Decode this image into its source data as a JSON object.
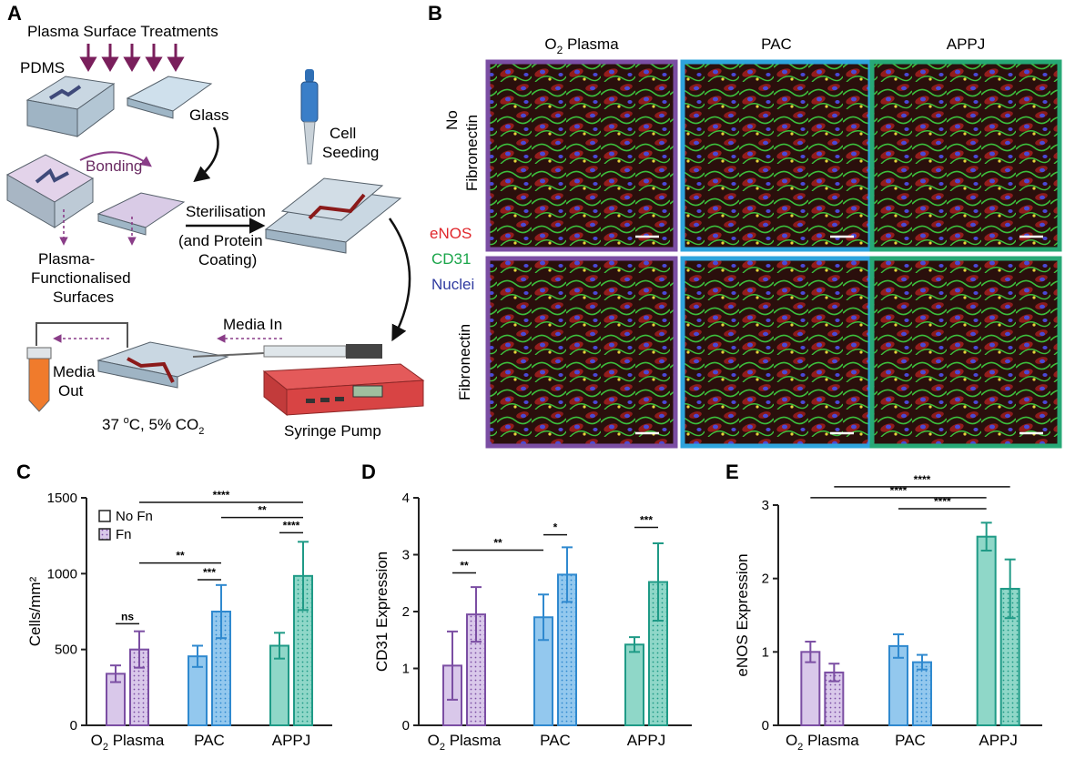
{
  "panels": {
    "A": {
      "letter": "A",
      "title": "Plasma Surface Treatments",
      "pdms": "PDMS",
      "glass": "Glass",
      "bonding": "Bonding",
      "functionalised_line1": "Plasma-",
      "functionalised_line2": "Functionalised",
      "functionalised_line3": "Surfaces",
      "sterilisation": "Sterilisation",
      "coating_line1": "(and Protein",
      "coating_line2": "Coating)",
      "seeding_line1": "Cell",
      "seeding_line2": "Seeding",
      "media_in": "Media In",
      "media_out_line1": "Media",
      "media_out_line2": "Out",
      "incubation_pre": "37 ",
      "incubation_deg": "o",
      "incubation_mid": "C, 5% CO",
      "incubation_sub": "2",
      "pump": "Syringe Pump"
    },
    "B": {
      "letter": "B",
      "columns": [
        {
          "main": "O",
          "sub": "2",
          "rest": " Plasma",
          "color": "#7b4ea3"
        },
        {
          "main": "PAC",
          "sub": "",
          "rest": "",
          "color": "#2ea3dc"
        },
        {
          "main": "APPJ",
          "sub": "",
          "rest": "",
          "color": "#27a876"
        }
      ],
      "row_no_fn_line1": "No",
      "row_no_fn_line2": "Fibronectin",
      "row_fn": "Fibronectin",
      "legend": [
        {
          "label": "eNOS",
          "color": "#e0262b"
        },
        {
          "label": "CD31",
          "color": "#1aa54a"
        },
        {
          "label": "Nuclei",
          "color": "#2f3aa0"
        }
      ]
    }
  },
  "chart_data": [
    {
      "panel": "C",
      "type": "bar",
      "ylabel": "Cells/mm²",
      "ylim": [
        0,
        1500
      ],
      "yticks": [
        "0",
        "500",
        "1000",
        "1500"
      ],
      "groups": [
        {
          "main": "O",
          "sub": "2",
          "rest": " Plasma"
        },
        {
          "main": "PAC",
          "sub": "",
          "rest": ""
        },
        {
          "main": "APPJ",
          "sub": "",
          "rest": ""
        }
      ],
      "legend": [
        {
          "label": "No Fn",
          "pattern": "plain"
        },
        {
          "label": "Fn",
          "pattern": "dots"
        }
      ],
      "legend_placement": "top-left",
      "series": [
        {
          "values": [
            340,
            455,
            525
          ],
          "errors": [
            55,
            70,
            85
          ]
        },
        {
          "values": [
            500,
            750,
            985
          ],
          "errors": [
            120,
            175,
            225
          ]
        }
      ],
      "significance": [
        {
          "text": "ns",
          "from": [
            0,
            0
          ],
          "to": [
            0,
            1
          ],
          "y": 670
        },
        {
          "text": "***",
          "from": [
            1,
            0
          ],
          "to": [
            1,
            1
          ],
          "y": 960
        },
        {
          "text": "**",
          "from": [
            0,
            1
          ],
          "to": [
            1,
            1
          ],
          "y": 1070
        },
        {
          "text": "****",
          "from": [
            2,
            0
          ],
          "to": [
            2,
            1
          ],
          "y": 1270
        },
        {
          "text": "**",
          "from": [
            1,
            1
          ],
          "to": [
            2,
            1
          ],
          "y": 1370
        },
        {
          "text": "****",
          "from": [
            0,
            1
          ],
          "to": [
            2,
            1
          ],
          "y": 1470
        }
      ]
    },
    {
      "panel": "D",
      "type": "bar",
      "ylabel": "CD31 Expression",
      "ylim": [
        0,
        4
      ],
      "yticks": [
        "0",
        "1",
        "2",
        "3",
        "4"
      ],
      "groups": [
        {
          "main": "O",
          "sub": "2",
          "rest": " Plasma"
        },
        {
          "main": "PAC",
          "sub": "",
          "rest": ""
        },
        {
          "main": "APPJ",
          "sub": "",
          "rest": ""
        }
      ],
      "series": [
        {
          "values": [
            1.05,
            1.9,
            1.42
          ],
          "errors": [
            0.6,
            0.4,
            0.13
          ]
        },
        {
          "values": [
            1.95,
            2.65,
            2.52
          ],
          "errors": [
            0.48,
            0.48,
            0.68
          ]
        }
      ],
      "significance": [
        {
          "text": "**",
          "from": [
            0,
            0
          ],
          "to": [
            0,
            1
          ],
          "y": 2.68
        },
        {
          "text": "**",
          "from": [
            0,
            0
          ],
          "to": [
            1,
            0
          ],
          "y": 3.08
        },
        {
          "text": "*",
          "from": [
            1,
            0
          ],
          "to": [
            1,
            1
          ],
          "y": 3.35
        },
        {
          "text": "***",
          "from": [
            2,
            0
          ],
          "to": [
            2,
            1
          ],
          "y": 3.48
        }
      ]
    },
    {
      "panel": "E",
      "type": "bar",
      "ylabel": "eNOS Expression",
      "ylim": [
        0,
        3
      ],
      "yticks": [
        "0",
        "1",
        "2",
        "3"
      ],
      "groups": [
        {
          "main": "O",
          "sub": "2",
          "rest": " Plasma"
        },
        {
          "main": "PAC",
          "sub": "",
          "rest": ""
        },
        {
          "main": "APPJ",
          "sub": "",
          "rest": ""
        }
      ],
      "series": [
        {
          "values": [
            1.0,
            1.08,
            2.57
          ],
          "errors": [
            0.14,
            0.16,
            0.19
          ]
        },
        {
          "values": [
            0.72,
            0.86,
            1.86
          ],
          "errors": [
            0.12,
            0.1,
            0.4
          ]
        }
      ],
      "significance": [
        {
          "text": "****",
          "from": [
            1,
            0
          ],
          "to": [
            2,
            0
          ],
          "y": 2.95
        },
        {
          "text": "****",
          "from": [
            0,
            0
          ],
          "to": [
            2,
            0
          ],
          "y": 3.1
        },
        {
          "text": "****",
          "from": [
            0,
            1
          ],
          "to": [
            2,
            1
          ],
          "y": 3.25
        }
      ]
    }
  ],
  "colors": {
    "o2": "#7b4ea3",
    "o2_fill": "#d9c8ea",
    "pac": "#2f89cf",
    "pac_fill": "#93c8ee",
    "appj": "#1f9a86",
    "appj_fill": "#8fd7c8",
    "arrow": "#7a1f5c"
  }
}
